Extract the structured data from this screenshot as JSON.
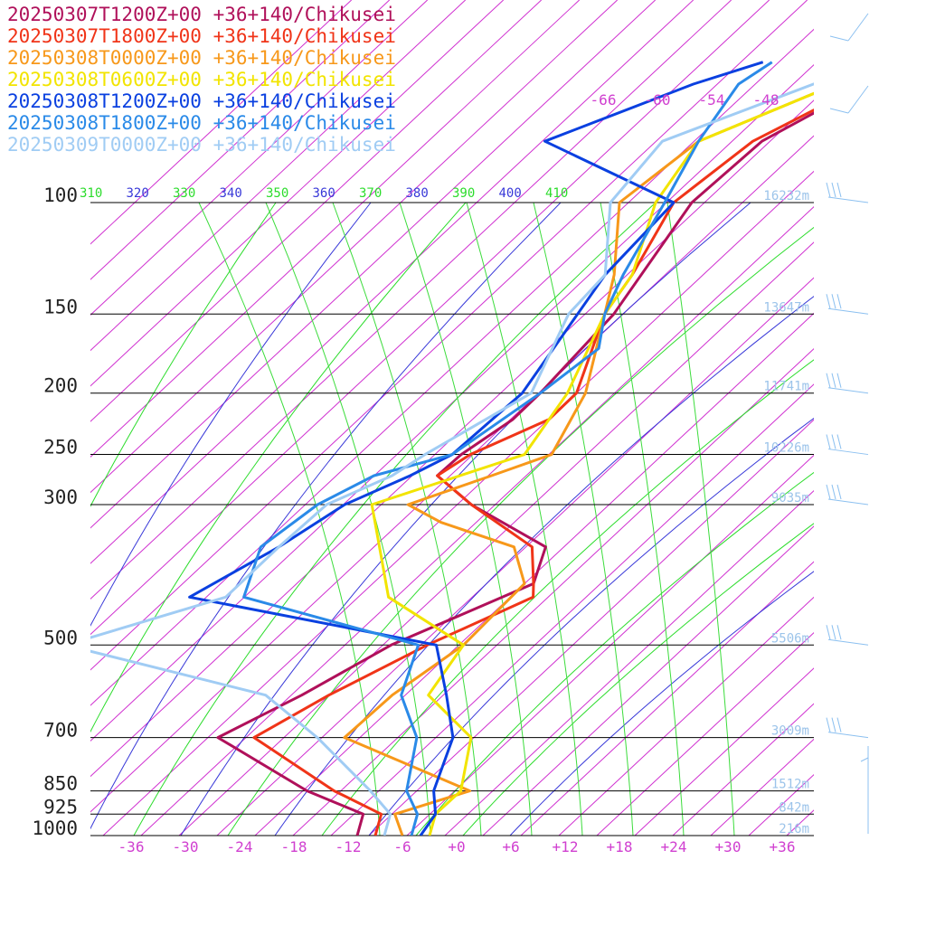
{
  "chart_data": {
    "type": "line",
    "title": "",
    "legend": {
      "placement": "top-left",
      "entries": [
        {
          "label": "20250307T1200Z+00 +36+140/Chikusei",
          "color": "#b0105a"
        },
        {
          "label": "20250307T1800Z+00 +36+140/Chikusei",
          "color": "#f03418"
        },
        {
          "label": "20250308T0000Z+00 +36+140/Chikusei",
          "color": "#f7981a"
        },
        {
          "label": "20250308T0600Z+00 +36+140/Chikusei",
          "color": "#f2e400"
        },
        {
          "label": "20250308T1200Z+00 +36+140/Chikusei",
          "color": "#0a40e0"
        },
        {
          "label": "20250308T1800Z+00 +36+140/Chikusei",
          "color": "#2a8ae8"
        },
        {
          "label": "20250309T0000Z+00 +36+140/Chikusei",
          "color": "#a0ccf4"
        }
      ]
    },
    "pressure_levels": [
      {
        "p": 100,
        "label": "100",
        "height": "16232m"
      },
      {
        "p": 150,
        "label": "150",
        "height": "13647m"
      },
      {
        "p": 200,
        "label": "200",
        "height": "11741m"
      },
      {
        "p": 250,
        "label": "250",
        "height": "10226m"
      },
      {
        "p": 300,
        "label": "300",
        "height": "9035m"
      },
      {
        "p": 500,
        "label": "500",
        "height": "5506m"
      },
      {
        "p": 700,
        "label": "700",
        "height": "3009m"
      },
      {
        "p": 850,
        "label": "850",
        "height": "1512m"
      },
      {
        "p": 925,
        "label": "925",
        "height": "842m"
      },
      {
        "p": 1000,
        "label": "1000",
        "height": "216m"
      }
    ],
    "x_ticks": [
      "-36",
      "-30",
      "-24",
      "-18",
      "-12",
      "-6",
      "+0",
      "+6",
      "+12",
      "+18",
      "+24",
      "+30",
      "+36"
    ],
    "x_tick_values": [
      -36,
      -30,
      -24,
      -18,
      -12,
      -6,
      0,
      6,
      12,
      18,
      24,
      30,
      36
    ],
    "xlim": [
      -40,
      40
    ],
    "plim": [
      1000,
      60
    ],
    "upper_temp_labels": [
      "-66",
      "-60",
      "-54",
      "-48"
    ],
    "theta_labels": [
      {
        "text": "310",
        "color": "#2cdc2c"
      },
      {
        "text": "320",
        "color": "#3838d8"
      },
      {
        "text": "330",
        "color": "#2cdc2c"
      },
      {
        "text": "340",
        "color": "#3838d8"
      },
      {
        "text": "350",
        "color": "#2cdc2c"
      },
      {
        "text": "360",
        "color": "#3838d8"
      },
      {
        "text": "370",
        "color": "#2cdc2c"
      },
      {
        "text": "380",
        "color": "#3838d8"
      },
      {
        "text": "390",
        "color": "#2cdc2c"
      },
      {
        "text": "400",
        "color": "#3838d8"
      },
      {
        "text": "410",
        "color": "#2cdc2c"
      }
    ],
    "background": {
      "dry_adiabat_color": "#d030d0",
      "isentrope_color_a": "#2cdc2c",
      "isentrope_color_b": "#3838d8",
      "isobar_color": "#000000",
      "moist_adiabat_color": "#3cdc3c"
    },
    "series": [
      {
        "color": "#b0105a",
        "points": [
          [
            1000,
            -11
          ],
          [
            925,
            -12
          ],
          [
            850,
            -20
          ],
          [
            700,
            -34
          ],
          [
            600,
            -28
          ],
          [
            500,
            -22
          ],
          [
            400,
            -11
          ],
          [
            350,
            -12.5
          ],
          [
            300,
            -24
          ],
          [
            270,
            -30
          ],
          [
            250,
            -29
          ],
          [
            220,
            -26
          ],
          [
            200,
            -25
          ],
          [
            150,
            -23
          ],
          [
            100,
            -23
          ],
          [
            80,
            -20
          ],
          [
            60,
            -10
          ]
        ]
      },
      {
        "color": "#f03418",
        "points": [
          [
            1000,
            -9
          ],
          [
            925,
            -10
          ],
          [
            850,
            -17
          ],
          [
            700,
            -30
          ],
          [
            600,
            -25
          ],
          [
            500,
            -18
          ],
          [
            420,
            -10
          ],
          [
            400,
            -11
          ],
          [
            350,
            -14
          ],
          [
            300,
            -24
          ],
          [
            270,
            -30
          ],
          [
            250,
            -28
          ],
          [
            220,
            -22
          ],
          [
            200,
            -21
          ],
          [
            150,
            -24
          ],
          [
            130,
            -24
          ],
          [
            100,
            -25
          ],
          [
            80,
            -21
          ],
          [
            60,
            -10
          ]
        ]
      },
      {
        "color": "#f7981a",
        "points": [
          [
            1000,
            -6
          ],
          [
            925,
            -8.5
          ],
          [
            850,
            -2
          ],
          [
            700,
            -20
          ],
          [
            600,
            -18
          ],
          [
            500,
            -14
          ],
          [
            400,
            -12
          ],
          [
            350,
            -16
          ],
          [
            320,
            -26
          ],
          [
            300,
            -31
          ],
          [
            270,
            -24
          ],
          [
            250,
            -19
          ],
          [
            200,
            -20
          ],
          [
            150,
            -24
          ],
          [
            130,
            -26
          ],
          [
            100,
            -31
          ],
          [
            80,
            -27
          ],
          [
            60,
            -12
          ]
        ]
      },
      {
        "color": "#f2e400",
        "points": [
          [
            1000,
            -3
          ],
          [
            925,
            -4
          ],
          [
            850,
            -3
          ],
          [
            700,
            -6
          ],
          [
            600,
            -14
          ],
          [
            500,
            -14
          ],
          [
            420,
            -26
          ],
          [
            300,
            -35
          ],
          [
            250,
            -22
          ],
          [
            200,
            -22
          ],
          [
            150,
            -24
          ],
          [
            130,
            -24
          ],
          [
            100,
            -27
          ],
          [
            80,
            -27
          ],
          [
            60,
            -12
          ]
        ]
      },
      {
        "color": "#0a40e0",
        "points": [
          [
            1000,
            -4
          ],
          [
            925,
            -4
          ],
          [
            850,
            -6
          ],
          [
            700,
            -8
          ],
          [
            600,
            -12
          ],
          [
            500,
            -17
          ],
          [
            420,
            -48
          ],
          [
            350,
            -42
          ],
          [
            300,
            -38
          ],
          [
            270,
            -33
          ],
          [
            250,
            -30
          ],
          [
            200,
            -27
          ],
          [
            150,
            -27
          ],
          [
            130,
            -27
          ],
          [
            100,
            -25
          ],
          [
            80,
            -44
          ],
          [
            65,
            -32
          ],
          [
            60,
            -26
          ]
        ]
      },
      {
        "color": "#2a8ae8",
        "points": [
          [
            1000,
            -5
          ],
          [
            925,
            -6
          ],
          [
            850,
            -9
          ],
          [
            700,
            -12
          ],
          [
            600,
            -17
          ],
          [
            500,
            -19
          ],
          [
            420,
            -42
          ],
          [
            350,
            -44
          ],
          [
            300,
            -41
          ],
          [
            270,
            -37
          ],
          [
            250,
            -30
          ],
          [
            200,
            -25
          ],
          [
            170,
            -22
          ],
          [
            150,
            -24
          ],
          [
            130,
            -25
          ],
          [
            100,
            -26
          ],
          [
            80,
            -27
          ],
          [
            65,
            -27
          ],
          [
            60,
            -25
          ]
        ]
      },
      {
        "color": "#a0ccf4",
        "points": [
          [
            1000,
            -8
          ],
          [
            925,
            -9
          ],
          [
            850,
            -13
          ],
          [
            700,
            -23
          ],
          [
            600,
            -32
          ],
          [
            500,
            -58
          ],
          [
            420,
            -44
          ],
          [
            350,
            -42
          ],
          [
            300,
            -40
          ],
          [
            270,
            -35
          ],
          [
            250,
            -33
          ],
          [
            200,
            -26
          ],
          [
            150,
            -28
          ],
          [
            130,
            -27
          ],
          [
            100,
            -32
          ],
          [
            80,
            -31
          ],
          [
            60,
            -14
          ]
        ]
      }
    ],
    "wind_barb_color": "#8cc0f0"
  }
}
